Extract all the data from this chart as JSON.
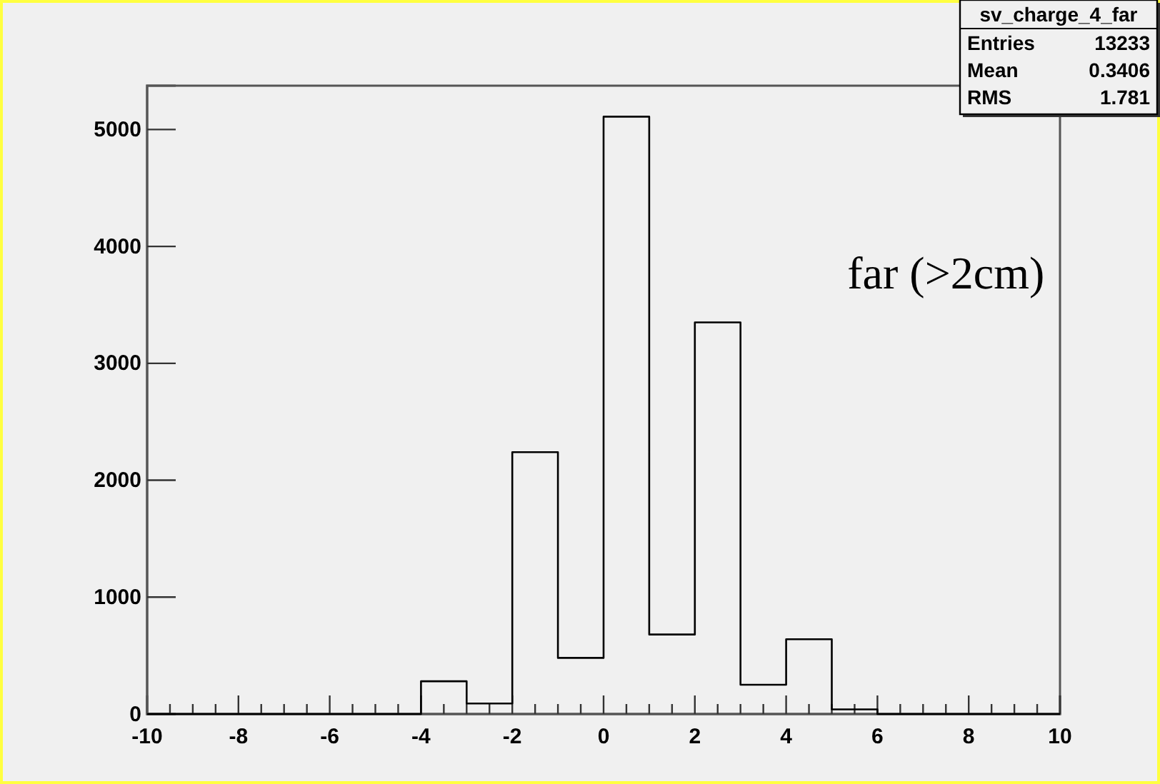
{
  "chart_data": {
    "type": "histogram",
    "title": "sv_charge_4_far",
    "bins": [
      -10,
      -9,
      -8,
      -7,
      -6,
      -5,
      -4,
      -3,
      -2,
      -1,
      0,
      1,
      2,
      3,
      4,
      5,
      6,
      7,
      8,
      9,
      10
    ],
    "values": [
      0,
      0,
      0,
      0,
      0,
      0,
      280,
      90,
      2240,
      480,
      5110,
      680,
      3350,
      250,
      640,
      40,
      0,
      0,
      0,
      0
    ],
    "color": "#000000",
    "xlim": [
      -10,
      10
    ],
    "xticks": [
      -10,
      -8,
      -6,
      -4,
      -2,
      0,
      2,
      4,
      6,
      8,
      10
    ],
    "ylim": [
      0,
      5375
    ],
    "yticks": [
      0,
      1000,
      2000,
      3000,
      4000,
      5000
    ],
    "annotations": [
      "Entries 13233",
      "Mean 0.3406",
      "RMS 1.781",
      "far (>2cm)"
    ]
  }
}
